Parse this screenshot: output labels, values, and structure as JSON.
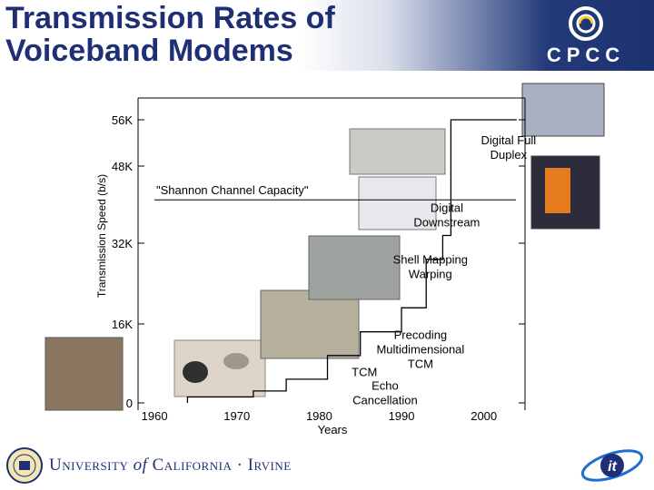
{
  "header": {
    "title": "Transmission Rates of\nVoiceband Modems",
    "logo_text": "CPCC"
  },
  "chart_data": {
    "type": "line",
    "xlabel": "Years",
    "ylabel": "Transmission Speed (b/s)",
    "x_ticks": [
      1960,
      1970,
      1980,
      1990,
      2000
    ],
    "y_ticks": [
      0,
      16000,
      32000,
      48000,
      56000
    ],
    "y_tick_labels": [
      "0",
      "16K",
      "32K",
      "48K",
      "56K"
    ],
    "xlim": [
      1958,
      2005
    ],
    "ylim": [
      0,
      58000
    ],
    "grid": false,
    "series": [
      {
        "step_points": [
          [
            1964,
            0
          ],
          [
            1964,
            1200
          ],
          [
            1972,
            1200
          ],
          [
            1972,
            2400
          ],
          [
            1976,
            2400
          ],
          [
            1976,
            4800
          ],
          [
            1981,
            4800
          ],
          [
            1981,
            9600
          ],
          [
            1985,
            9600
          ],
          [
            1985,
            14400
          ],
          [
            1990,
            14400
          ],
          [
            1990,
            19200
          ],
          [
            1993,
            19200
          ],
          [
            1993,
            28800
          ],
          [
            1995,
            28800
          ],
          [
            1995,
            33600
          ],
          [
            1996,
            33600
          ],
          [
            1996,
            56000
          ],
          [
            2004,
            56000
          ]
        ]
      }
    ],
    "reference_line": {
      "label": "\"Shannon Channel Capacity\"",
      "y": 41000
    },
    "annotations": [
      {
        "text": "Digital Full\nDuplex",
        "x": 2003,
        "y": 50500
      },
      {
        "text": "Digital\nDownstream",
        "x": 1995.5,
        "y": 37000
      },
      {
        "text": "Shell Mapping\nWarping",
        "x": 1993.5,
        "y": 26500
      },
      {
        "text": "Precoding\nMultidimensional\nTCM",
        "x": 1992.3,
        "y": 10000
      },
      {
        "text": "TCM",
        "x": 1985.5,
        "y": 5400
      },
      {
        "text": "Echo\nCancellation",
        "x": 1988,
        "y": 1200
      }
    ]
  },
  "footer": {
    "university_prefix": "University",
    "university_of": "of",
    "university_name": "California",
    "university_suffix": "· Irvine",
    "it2_logo": "it"
  },
  "colors": {
    "title": "#1f2f75",
    "header_band_dark": "#1c3170",
    "axis": "#000000",
    "line": "#000000"
  },
  "icons": {
    "cpcc_logo": "spiral-logo-icon",
    "uci_seal": "university-seal-icon",
    "it2_logo": "it2-logo-icon"
  }
}
